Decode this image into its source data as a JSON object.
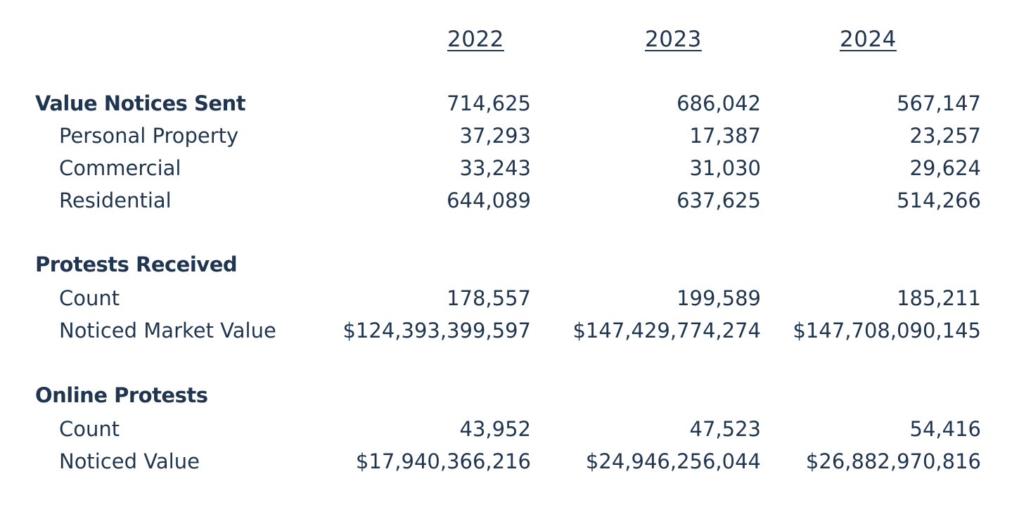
{
  "years": [
    "2022",
    "2023",
    "2024"
  ],
  "sections": [
    {
      "title": "Value Notices Sent",
      "values": [
        "714,625",
        "686,042",
        "567,147"
      ],
      "rows": [
        {
          "label": "Personal Property",
          "values": [
            "37,293",
            "17,387",
            "23,257"
          ]
        },
        {
          "label": "Commercial",
          "values": [
            "33,243",
            "31,030",
            "29,624"
          ]
        },
        {
          "label": "Residential",
          "values": [
            "644,089",
            "637,625",
            "514,266"
          ]
        }
      ]
    },
    {
      "title": "Protests Received",
      "values": [
        "",
        "",
        ""
      ],
      "rows": [
        {
          "label": "Count",
          "values": [
            "178,557",
            "199,589",
            "185,211"
          ]
        },
        {
          "label": "Noticed Market Value",
          "values": [
            "$124,393,399,597",
            "$147,429,774,274",
            "$147,708,090,145"
          ]
        }
      ]
    },
    {
      "title": "Online Protests",
      "values": [
        "",
        "",
        ""
      ],
      "rows": [
        {
          "label": "Count",
          "values": [
            "43,952",
            "47,523",
            "54,416"
          ]
        },
        {
          "label": "Noticed Value",
          "values": [
            "$17,940,366,216",
            "$24,946,256,044",
            "$26,882,970,816"
          ]
        }
      ]
    }
  ]
}
